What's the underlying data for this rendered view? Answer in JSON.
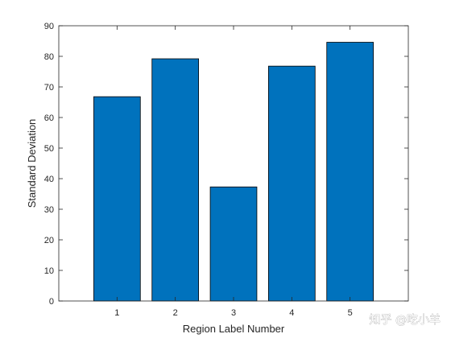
{
  "chart_data": {
    "type": "bar",
    "categories": [
      "1",
      "2",
      "3",
      "4",
      "5"
    ],
    "values": [
      66.8,
      79.2,
      37.3,
      76.8,
      84.6
    ],
    "xlabel": "Region Label Number",
    "ylabel": "Standard Deviation",
    "ylim": [
      0,
      90
    ],
    "yticks": [
      0,
      10,
      20,
      30,
      40,
      50,
      60,
      70,
      80,
      90
    ],
    "xlim": [
      0,
      6
    ],
    "grid": false,
    "legend": "none",
    "bar_color": "#0072bd",
    "bar_edge_color": "#000000",
    "axis_color": "#262626"
  },
  "watermark": {
    "text": "知乎 @吃小羊"
  }
}
